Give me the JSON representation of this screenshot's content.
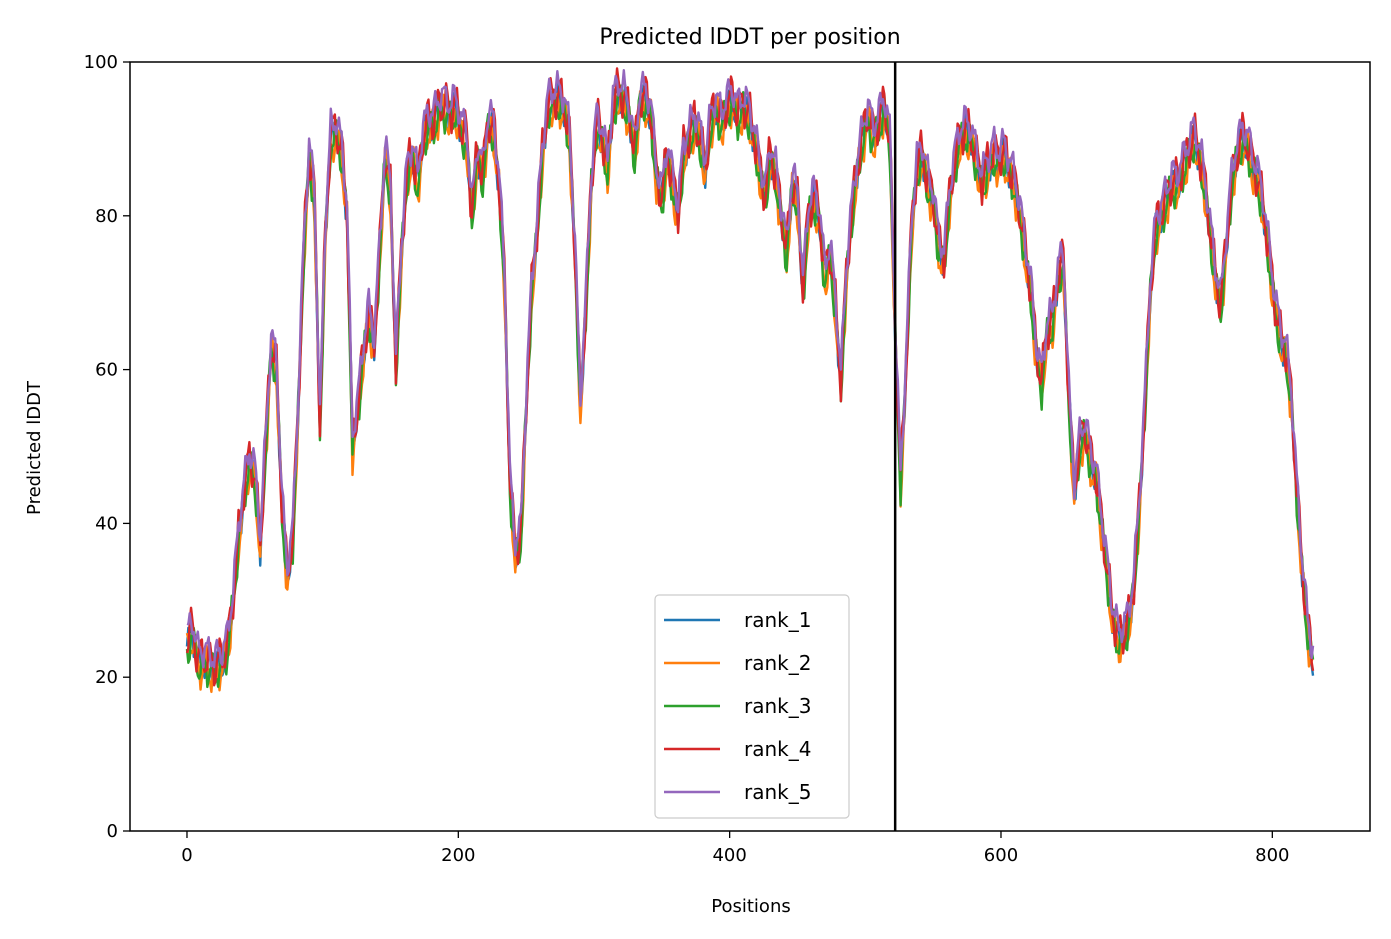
{
  "chart_data": {
    "type": "line",
    "title": "Predicted lDDT per position",
    "xlabel": "Positions",
    "ylabel": "Predicted lDDT",
    "xlim": [
      -42,
      872
    ],
    "ylim": [
      0,
      100
    ],
    "xticks": [
      0,
      200,
      400,
      600,
      800
    ],
    "yticks": [
      0,
      20,
      40,
      60,
      80,
      100
    ],
    "grid": false,
    "legend_position": "lower center",
    "vertical_line_x": 522,
    "vertical_line_color": "#000000",
    "profile": [
      [
        0,
        24
      ],
      [
        4,
        26
      ],
      [
        8,
        22
      ],
      [
        14,
        22
      ],
      [
        20,
        21
      ],
      [
        26,
        22
      ],
      [
        30,
        24
      ],
      [
        34,
        30
      ],
      [
        38,
        38
      ],
      [
        42,
        44
      ],
      [
        46,
        48
      ],
      [
        50,
        46
      ],
      [
        54,
        37
      ],
      [
        58,
        50
      ],
      [
        62,
        63
      ],
      [
        66,
        60
      ],
      [
        70,
        42
      ],
      [
        74,
        33
      ],
      [
        78,
        38
      ],
      [
        82,
        55
      ],
      [
        86,
        75
      ],
      [
        90,
        88
      ],
      [
        94,
        82
      ],
      [
        98,
        52
      ],
      [
        102,
        78
      ],
      [
        106,
        90
      ],
      [
        110,
        91
      ],
      [
        114,
        88
      ],
      [
        118,
        80
      ],
      [
        122,
        50
      ],
      [
        126,
        55
      ],
      [
        130,
        62
      ],
      [
        134,
        67
      ],
      [
        138,
        63
      ],
      [
        142,
        75
      ],
      [
        146,
        88
      ],
      [
        150,
        83
      ],
      [
        154,
        60
      ],
      [
        158,
        75
      ],
      [
        162,
        85
      ],
      [
        166,
        88
      ],
      [
        170,
        84
      ],
      [
        174,
        90
      ],
      [
        178,
        92
      ],
      [
        182,
        92
      ],
      [
        186,
        94
      ],
      [
        190,
        94
      ],
      [
        194,
        93
      ],
      [
        198,
        94
      ],
      [
        202,
        91
      ],
      [
        206,
        90
      ],
      [
        210,
        80
      ],
      [
        214,
        88
      ],
      [
        218,
        85
      ],
      [
        222,
        92
      ],
      [
        226,
        91
      ],
      [
        230,
        84
      ],
      [
        234,
        72
      ],
      [
        238,
        45
      ],
      [
        242,
        36
      ],
      [
        246,
        38
      ],
      [
        250,
        55
      ],
      [
        254,
        70
      ],
      [
        258,
        78
      ],
      [
        262,
        88
      ],
      [
        266,
        94
      ],
      [
        270,
        95
      ],
      [
        274,
        95
      ],
      [
        278,
        94
      ],
      [
        282,
        90
      ],
      [
        286,
        75
      ],
      [
        290,
        55
      ],
      [
        294,
        68
      ],
      [
        298,
        84
      ],
      [
        302,
        92
      ],
      [
        306,
        90
      ],
      [
        310,
        86
      ],
      [
        314,
        94
      ],
      [
        318,
        96
      ],
      [
        322,
        95
      ],
      [
        326,
        93
      ],
      [
        330,
        88
      ],
      [
        334,
        95
      ],
      [
        338,
        95
      ],
      [
        342,
        93
      ],
      [
        346,
        85
      ],
      [
        350,
        82
      ],
      [
        354,
        88
      ],
      [
        358,
        84
      ],
      [
        362,
        80
      ],
      [
        366,
        88
      ],
      [
        370,
        90
      ],
      [
        374,
        92
      ],
      [
        378,
        90
      ],
      [
        382,
        86
      ],
      [
        386,
        92
      ],
      [
        390,
        94
      ],
      [
        394,
        92
      ],
      [
        398,
        94
      ],
      [
        402,
        95
      ],
      [
        406,
        93
      ],
      [
        410,
        94
      ],
      [
        414,
        93
      ],
      [
        418,
        90
      ],
      [
        422,
        86
      ],
      [
        426,
        82
      ],
      [
        430,
        88
      ],
      [
        434,
        85
      ],
      [
        438,
        80
      ],
      [
        442,
        75
      ],
      [
        446,
        84
      ],
      [
        450,
        82
      ],
      [
        454,
        70
      ],
      [
        458,
        80
      ],
      [
        462,
        82
      ],
      [
        466,
        80
      ],
      [
        470,
        72
      ],
      [
        474,
        75
      ],
      [
        478,
        68
      ],
      [
        482,
        58
      ],
      [
        486,
        72
      ],
      [
        490,
        80
      ],
      [
        494,
        86
      ],
      [
        498,
        90
      ],
      [
        502,
        93
      ],
      [
        506,
        90
      ],
      [
        510,
        92
      ],
      [
        514,
        94
      ],
      [
        518,
        90
      ],
      [
        522,
        65
      ],
      [
        526,
        45
      ],
      [
        530,
        60
      ],
      [
        534,
        78
      ],
      [
        538,
        86
      ],
      [
        542,
        88
      ],
      [
        546,
        84
      ],
      [
        550,
        82
      ],
      [
        554,
        76
      ],
      [
        558,
        74
      ],
      [
        562,
        82
      ],
      [
        566,
        87
      ],
      [
        570,
        90
      ],
      [
        574,
        91
      ],
      [
        578,
        90
      ],
      [
        582,
        87
      ],
      [
        586,
        84
      ],
      [
        590,
        86
      ],
      [
        594,
        88
      ],
      [
        598,
        87
      ],
      [
        602,
        88
      ],
      [
        606,
        86
      ],
      [
        610,
        84
      ],
      [
        614,
        80
      ],
      [
        618,
        75
      ],
      [
        622,
        70
      ],
      [
        626,
        62
      ],
      [
        630,
        58
      ],
      [
        634,
        65
      ],
      [
        638,
        66
      ],
      [
        642,
        72
      ],
      [
        646,
        74
      ],
      [
        650,
        56
      ],
      [
        654,
        44
      ],
      [
        658,
        50
      ],
      [
        662,
        52
      ],
      [
        666,
        48
      ],
      [
        670,
        46
      ],
      [
        674,
        40
      ],
      [
        678,
        34
      ],
      [
        682,
        28
      ],
      [
        686,
        25
      ],
      [
        690,
        25
      ],
      [
        694,
        27
      ],
      [
        698,
        32
      ],
      [
        702,
        42
      ],
      [
        706,
        55
      ],
      [
        710,
        70
      ],
      [
        714,
        78
      ],
      [
        718,
        80
      ],
      [
        722,
        82
      ],
      [
        726,
        84
      ],
      [
        730,
        84
      ],
      [
        734,
        86
      ],
      [
        738,
        88
      ],
      [
        742,
        90
      ],
      [
        746,
        88
      ],
      [
        750,
        84
      ],
      [
        754,
        78
      ],
      [
        758,
        72
      ],
      [
        762,
        68
      ],
      [
        766,
        76
      ],
      [
        770,
        84
      ],
      [
        774,
        88
      ],
      [
        778,
        90
      ],
      [
        782,
        89
      ],
      [
        786,
        86
      ],
      [
        790,
        84
      ],
      [
        794,
        80
      ],
      [
        798,
        74
      ],
      [
        802,
        68
      ],
      [
        806,
        64
      ],
      [
        810,
        62
      ],
      [
        814,
        56
      ],
      [
        818,
        44
      ],
      [
        822,
        34
      ],
      [
        826,
        26
      ],
      [
        830,
        22
      ]
    ],
    "series": [
      {
        "name": "rank_1",
        "color": "#1f77b4",
        "offset": 0.0,
        "wave": 1.7
      },
      {
        "name": "rank_2",
        "color": "#ff7f0e",
        "offset": -0.8,
        "wave": 2.1
      },
      {
        "name": "rank_3",
        "color": "#2ca02c",
        "offset": -0.6,
        "wave": 1.9
      },
      {
        "name": "rank_4",
        "color": "#d62728",
        "offset": 0.6,
        "wave": 2.4
      },
      {
        "name": "rank_5",
        "color": "#9467bd",
        "offset": 1.6,
        "wave": 1.6
      }
    ]
  }
}
